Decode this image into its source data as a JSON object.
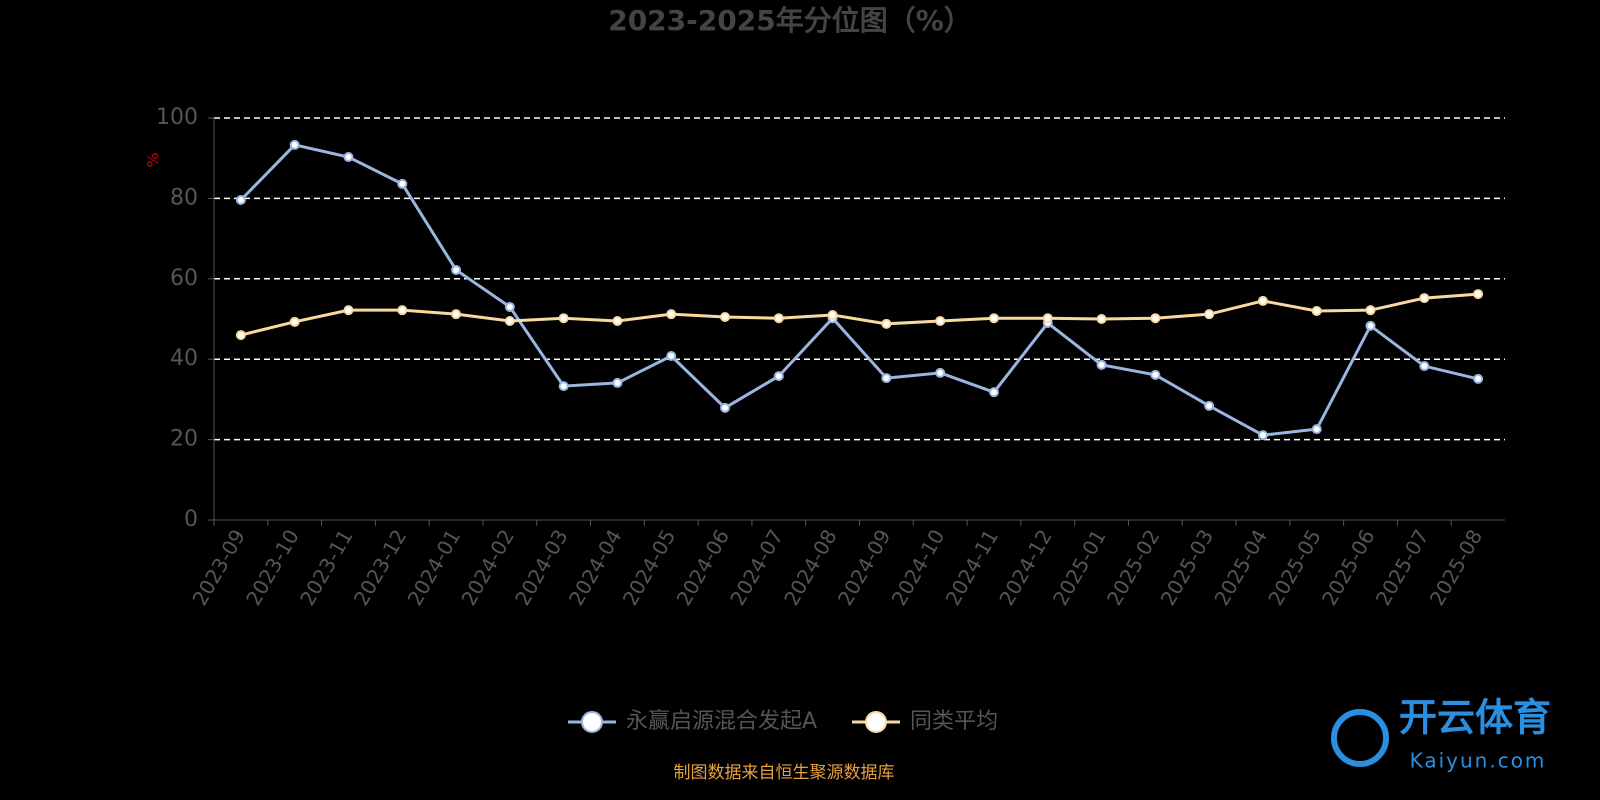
{
  "chart_data": {
    "type": "line",
    "title": "2023-2025年分位图（%）",
    "ylabel": "%",
    "categories": [
      "2023-09",
      "2023-10",
      "2023-11",
      "2023-12",
      "2024-01",
      "2024-02",
      "2024-03",
      "2024-04",
      "2024-05",
      "2024-06",
      "2024-07",
      "2024-08",
      "2024-09",
      "2024-10",
      "2024-11",
      "2024-12",
      "2025-01",
      "2025-02",
      "2025-03",
      "2025-04",
      "2025-05",
      "2025-06",
      "2025-07",
      "2025-08"
    ],
    "series": [
      {
        "name": "永赢启源混合发起A",
        "color": "#9ab6e0",
        "values": [
          79.6,
          93.3,
          90.3,
          83.6,
          62.2,
          53,
          33.3,
          34.1,
          40.8,
          27.9,
          35.8,
          50.2,
          35.3,
          36.6,
          31.8,
          49,
          38.6,
          36.1,
          28.4,
          21.1,
          22.6,
          48.3,
          38.3,
          35.1
        ]
      },
      {
        "name": "同类平均",
        "color": "#f8d9a0",
        "values": [
          46,
          49.3,
          52.2,
          52.2,
          51.2,
          49.5,
          50.2,
          49.5,
          51.2,
          50.5,
          50.2,
          51,
          48.8,
          49.5,
          50.2,
          50.2,
          50,
          50.2,
          51.2,
          54.5,
          52,
          52.2,
          55.2,
          56.2
        ]
      }
    ],
    "ylim": [
      0,
      100
    ],
    "yticks": [
      0,
      20,
      40,
      60,
      80,
      100
    ],
    "grid": true,
    "source": "制图数据来自恒生聚源数据库",
    "watermark": {
      "brand": "开云体育",
      "site": "Kaiyun.com"
    }
  }
}
